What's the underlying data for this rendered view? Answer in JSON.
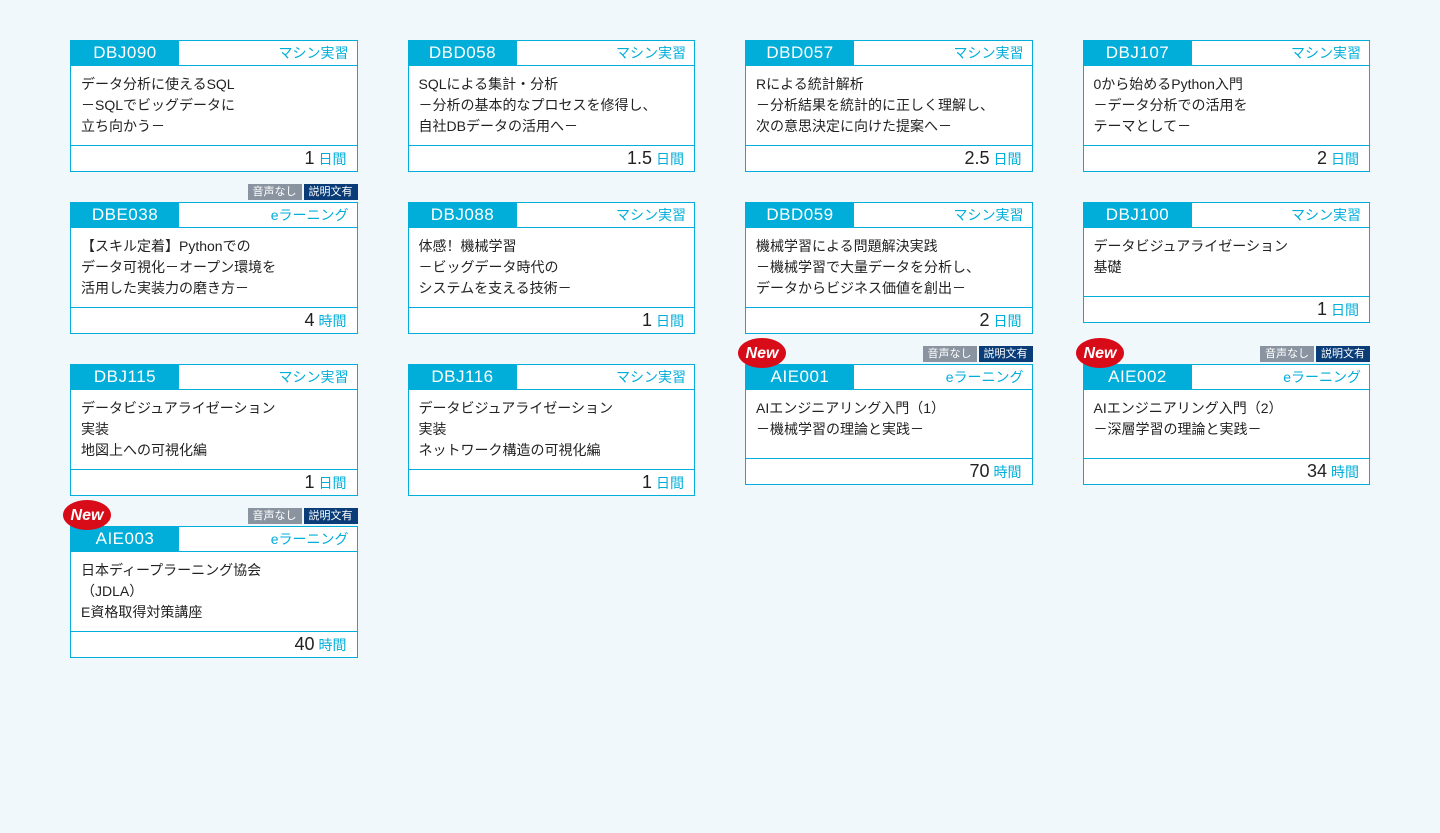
{
  "colors": {
    "page_bg": "#f0f8fc",
    "card_border": "#00aed9",
    "card_bg": "#ffffff",
    "code_bg": "#00aed9",
    "code_text": "#ffffff",
    "type_text": "#00aed9",
    "body_text": "#222222",
    "duration_unit_text": "#00aed9",
    "tag_audio_bg": "#8a94a0",
    "tag_doc_bg": "#0a3d78",
    "new_badge_fill": "#d80c18",
    "new_badge_text": "#ffffff"
  },
  "typography": {
    "code_fontsize": 17,
    "type_fontsize": 14,
    "body_fontsize": 14,
    "duration_value_fontsize": 18,
    "duration_unit_fontsize": 14,
    "pre_tag_fontsize": 11
  },
  "tag_labels": {
    "audio": "音声なし",
    "doc": "説明文有"
  },
  "new_label": "New",
  "courses": [
    {
      "code": "DBJ090",
      "type": "マシン実習",
      "body": [
        "データ分析に使えるSQL",
        "－SQLでビッグデータに",
        "立ち向かう－"
      ],
      "duration_value": "1",
      "duration_unit": "日間"
    },
    {
      "code": "DBD058",
      "type": "マシン実習",
      "body": [
        "SQLによる集計・分析",
        "－分析の基本的なプロセスを修得し、",
        "自社DBデータの活用へ－"
      ],
      "duration_value": "1.5",
      "duration_unit": "日間"
    },
    {
      "code": "DBD057",
      "type": "マシン実習",
      "body": [
        "Rによる統計解析",
        "－分析結果を統計的に正しく理解し、",
        "次の意思決定に向けた提案へ－"
      ],
      "duration_value": "2.5",
      "duration_unit": "日間"
    },
    {
      "code": "DBJ107",
      "type": "マシン実習",
      "body": [
        "0から始めるPython入門",
        "－データ分析での活用を",
        "テーマとして－"
      ],
      "duration_value": "2",
      "duration_unit": "日間"
    },
    {
      "code": "DBE038",
      "type": "eラーニング",
      "body": [
        "【スキル定着】Pythonでの",
        "データ可視化－オープン環境を",
        "活用した実装力の磨き方－"
      ],
      "duration_value": "4",
      "duration_unit": "時間",
      "tags": [
        "audio",
        "doc"
      ]
    },
    {
      "code": "DBJ088",
      "type": "マシン実習",
      "body": [
        "体感！機械学習",
        "－ビッグデータ時代の",
        "システムを支える技術－"
      ],
      "duration_value": "1",
      "duration_unit": "日間"
    },
    {
      "code": "DBD059",
      "type": "マシン実習",
      "body": [
        "機械学習による問題解決実践",
        "－機械学習で大量データを分析し、",
        "データからビジネス価値を創出－"
      ],
      "duration_value": "2",
      "duration_unit": "日間"
    },
    {
      "code": "DBJ100",
      "type": "マシン実習",
      "body": [
        "データビジュアライゼーション",
        "基礎"
      ],
      "duration_value": "1",
      "duration_unit": "日間"
    },
    {
      "code": "DBJ115",
      "type": "マシン実習",
      "body": [
        "データビジュアライゼーション",
        "実装",
        "地図上への可視化編"
      ],
      "duration_value": "1",
      "duration_unit": "日間"
    },
    {
      "code": "DBJ116",
      "type": "マシン実習",
      "body": [
        "データビジュアライゼーション",
        "実装",
        "ネットワーク構造の可視化編"
      ],
      "duration_value": "1",
      "duration_unit": "日間"
    },
    {
      "code": "AIE001",
      "type": "eラーニング",
      "body": [
        "AIエンジニアリング入門（1）",
        "－機械学習の理論と実践－"
      ],
      "duration_value": "70",
      "duration_unit": "時間",
      "new": true,
      "tags": [
        "audio",
        "doc"
      ]
    },
    {
      "code": "AIE002",
      "type": "eラーニング",
      "body": [
        "AIエンジニアリング入門（2）",
        "－深層学習の理論と実践－"
      ],
      "duration_value": "34",
      "duration_unit": "時間",
      "new": true,
      "tags": [
        "audio",
        "doc"
      ]
    },
    {
      "code": "AIE003",
      "type": "eラーニング",
      "body": [
        "日本ディープラーニング協会",
        "（JDLA）",
        "E資格取得対策講座"
      ],
      "duration_value": "40",
      "duration_unit": "時間",
      "new": true,
      "tags": [
        "audio",
        "doc"
      ]
    }
  ]
}
